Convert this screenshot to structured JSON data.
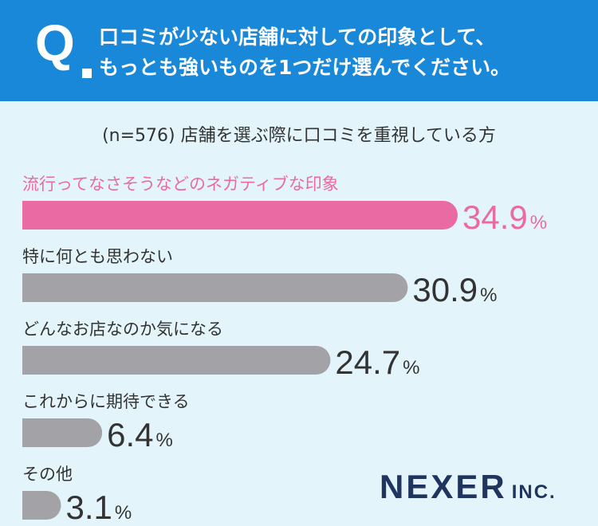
{
  "header": {
    "q_label": "Q",
    "question_line1": "口コミが少ない店舗に対しての印象として、",
    "question_line2": "もっとも強いものを1つだけ選んでください。"
  },
  "chart_data": {
    "type": "bar",
    "orientation": "horizontal",
    "title": "(n=576) 店舗を選ぶ際に口コミを重視している方",
    "categories": [
      "流行ってなさそうなどのネガティブな印象",
      "特に何とも思わない",
      "どんなお店なのか気になる",
      "これからに期待できる",
      "その他"
    ],
    "values": [
      34.9,
      30.9,
      24.7,
      6.4,
      3.1
    ],
    "value_labels": [
      "34.9",
      "30.9",
      "24.7",
      "6.4",
      "3.1"
    ],
    "unit": "%",
    "highlight_index": 0,
    "colors": {
      "highlight": "#ea6aa4",
      "default": "#a3a3a7",
      "label": "#333333"
    }
  },
  "logo": {
    "main": "NEXER",
    "sub": "INC."
  }
}
